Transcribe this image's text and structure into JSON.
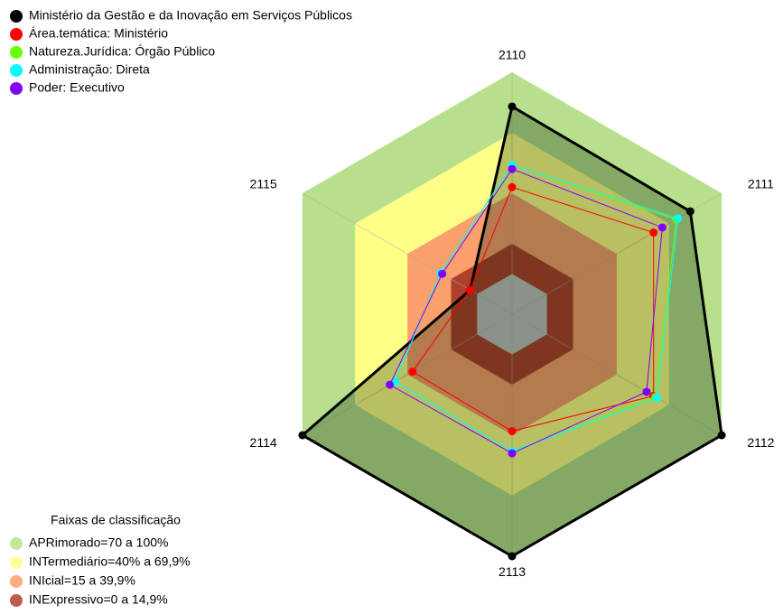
{
  "chart_data": {
    "type": "radar",
    "categories": [
      "2110",
      "2111",
      "2112",
      "2113",
      "2114",
      "2115"
    ],
    "rlim": [
      -20,
      100
    ],
    "series": [
      {
        "name": "Ministério da Gestão e da Inovação em Serviços Públicos",
        "color": "#000000",
        "values": [
          83,
          82,
          100,
          100,
          100,
          4
        ]
      },
      {
        "name": "Área.temática: Ministério",
        "color": "#ff0000",
        "values": [
          43,
          61,
          61,
          38,
          37,
          4
        ]
      },
      {
        "name": "Natureza.Jurídica: Órgão Público",
        "color": "#66ff00",
        "values": [
          54,
          74,
          62,
          48,
          47,
          21
        ]
      },
      {
        "name": "Administração: Direta",
        "color": "#00ffff",
        "values": [
          54,
          75,
          63,
          48,
          47,
          21
        ]
      },
      {
        "name": "Poder: Executivo",
        "color": "#8000ff",
        "values": [
          52,
          66,
          57,
          49,
          50,
          20
        ]
      }
    ],
    "bands_title": "Faixas de classificação",
    "bands": [
      {
        "name": "APRimorado=70 a 100%",
        "from": 70,
        "to": 100,
        "color": "#b8e08c"
      },
      {
        "name": "INTermediário=40% a 69,9%",
        "from": 40,
        "to": 69.9,
        "color": "#ffff88"
      },
      {
        "name": "INIcial=15 a 39,9%",
        "from": 15,
        "to": 39.9,
        "color": "#f9a06c"
      },
      {
        "name": "INExpressivo=0 a 14,9%",
        "from": 0,
        "to": 14.9,
        "color": "#b0402e"
      }
    ]
  }
}
